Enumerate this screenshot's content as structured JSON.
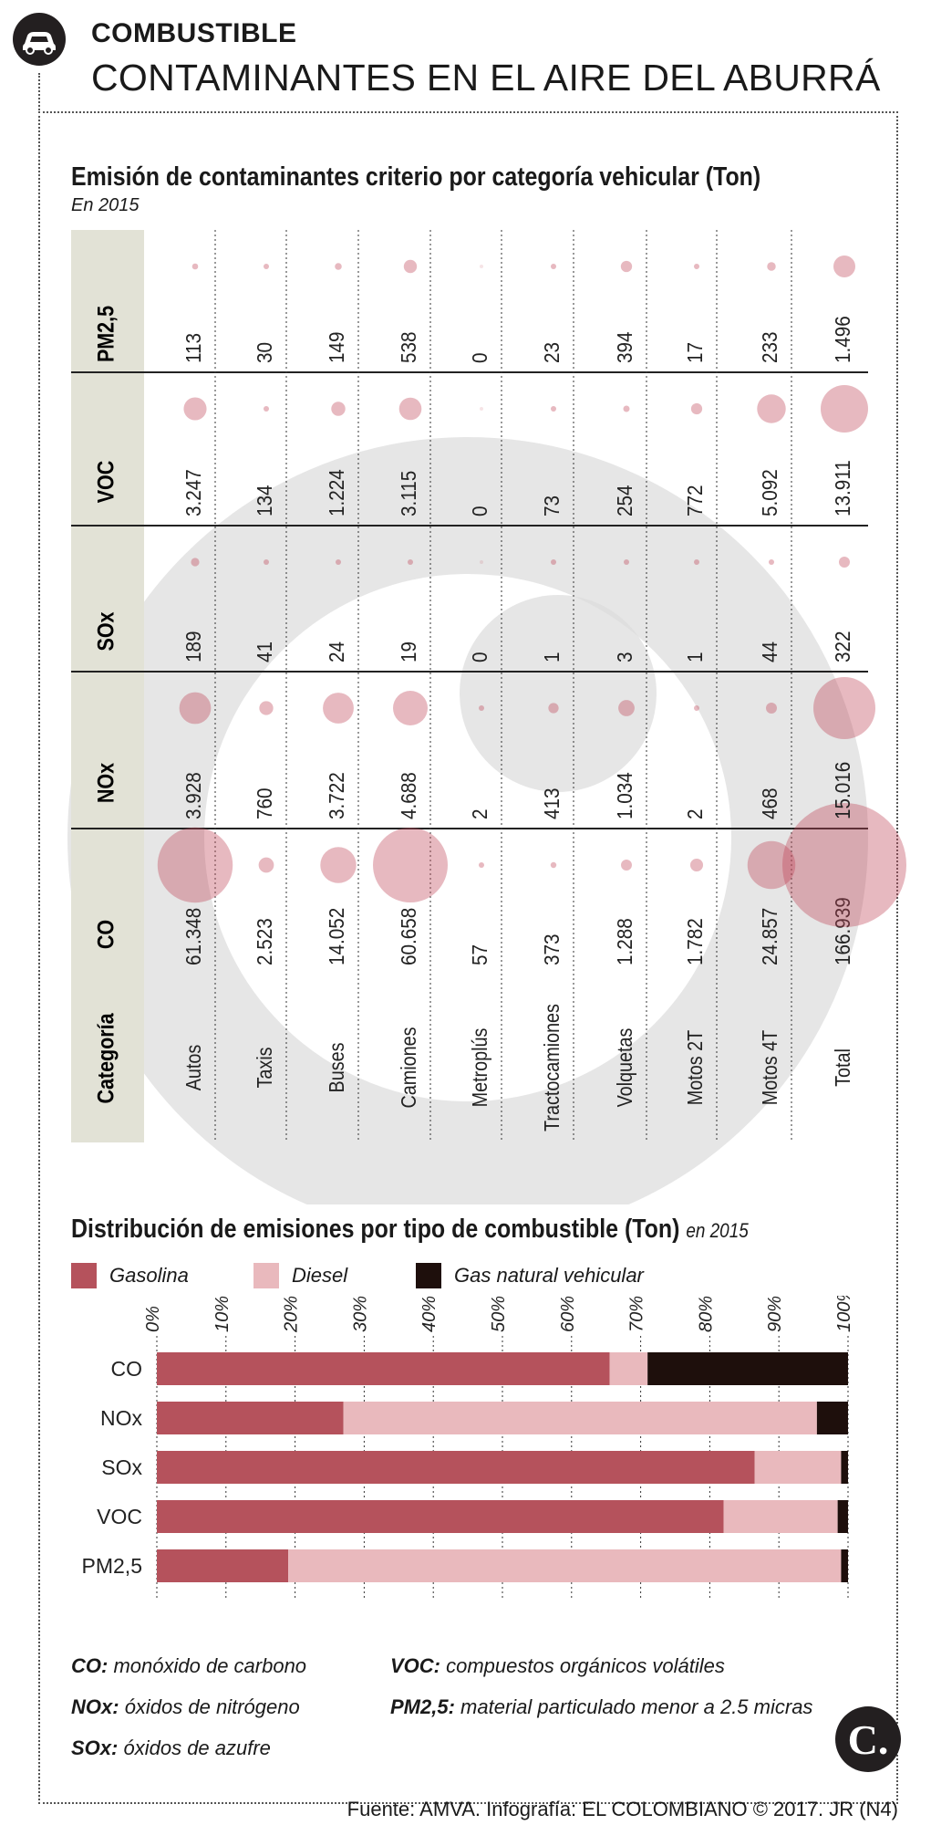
{
  "header": {
    "kicker": "COMBUSTIBLE",
    "headline": "CONTAMINANTES EN EL AIRE DEL ABURRÁ"
  },
  "chart_data": [
    {
      "type": "table",
      "title": "Emisión de contaminantes criterio por categoría vehicular (Ton)",
      "subtitle": "En 2015",
      "row_header": "Categoría",
      "columns": [
        "CO",
        "NOx",
        "SOx",
        "VOC",
        "PM2,5"
      ],
      "rows": [
        {
          "category": "Autos",
          "values": [
            61348,
            3928,
            189,
            3247,
            113
          ],
          "labels": [
            "61.348",
            "3.928",
            "189",
            "3.247",
            "113"
          ]
        },
        {
          "category": "Taxis",
          "values": [
            2523,
            760,
            41,
            134,
            30
          ],
          "labels": [
            "2.523",
            "760",
            "41",
            "134",
            "30"
          ]
        },
        {
          "category": "Buses",
          "values": [
            14052,
            3722,
            24,
            1224,
            149
          ],
          "labels": [
            "14.052",
            "3.722",
            "24",
            "1.224",
            "149"
          ]
        },
        {
          "category": "Camiones",
          "values": [
            60658,
            4688,
            19,
            3115,
            538
          ],
          "labels": [
            "60.658",
            "4.688",
            "19",
            "3.115",
            "538"
          ]
        },
        {
          "category": "Metroplús",
          "values": [
            57,
            2,
            0,
            0,
            0
          ],
          "labels": [
            "57",
            "2",
            "0",
            "0",
            "0"
          ]
        },
        {
          "category": "Tractocamiones",
          "values": [
            373,
            413,
            1,
            73,
            23
          ],
          "labels": [
            "373",
            "413",
            "1",
            "73",
            "23"
          ]
        },
        {
          "category": "Volquetas",
          "values": [
            1288,
            1034,
            3,
            254,
            394
          ],
          "labels": [
            "1.288",
            "1.034",
            "3",
            "254",
            "394"
          ]
        },
        {
          "category": "Motos 2T",
          "values": [
            1782,
            2,
            1,
            772,
            17
          ],
          "labels": [
            "1.782",
            "2",
            "1",
            "772",
            "17"
          ]
        },
        {
          "category": "Motos 4T",
          "values": [
            24857,
            468,
            44,
            5092,
            233
          ],
          "labels": [
            "24.857",
            "468",
            "44",
            "5.092",
            "233"
          ]
        },
        {
          "category": "Total",
          "values": [
            166939,
            15016,
            322,
            13911,
            1496
          ],
          "labels": [
            "166.939",
            "15.016",
            "322",
            "13.911",
            "1.496"
          ]
        }
      ],
      "bubble_color": "#c0485a"
    },
    {
      "type": "bar",
      "stacked": true,
      "title": "Distribución de emisiones por tipo de combustible (Ton)",
      "subtitle": "en 2015",
      "categories": [
        "CO",
        "NOx",
        "SOx",
        "VOC",
        "PM2,5"
      ],
      "series": [
        {
          "name": "Gasolina",
          "values": [
            65.5,
            27,
            86.5,
            82,
            19
          ],
          "color": "#b5525c"
        },
        {
          "name": "Diesel",
          "values": [
            5.5,
            68.5,
            12.5,
            16.5,
            80
          ],
          "color": "#e9b9bd"
        },
        {
          "name": "Gas natural vehicular",
          "values": [
            29,
            4.5,
            1,
            1.5,
            1
          ],
          "color": "#1e0f0c"
        }
      ],
      "ticks": [
        "0%",
        "10%",
        "20%",
        "30%",
        "40%",
        "50%",
        "60%",
        "70%",
        "80%",
        "90%",
        "100%"
      ],
      "xlim": [
        0,
        100
      ]
    }
  ],
  "glossary": [
    {
      "term": "CO:",
      "definition": "monóxido de carbono"
    },
    {
      "term": "NOx:",
      "definition": "óxidos de nitrógeno"
    },
    {
      "term": "SOx:",
      "definition": "óxidos de azufre"
    },
    {
      "term": "VOC:",
      "definition": "compuestos orgánicos volátiles"
    },
    {
      "term": "PM2,5:",
      "definition": "material particulado menor a 2.5 micras"
    }
  ],
  "footer": {
    "source": "Fuente: AMVA. Infografía: EL COLOMBIANO © 2017. JR (N4)",
    "logo": "C."
  }
}
